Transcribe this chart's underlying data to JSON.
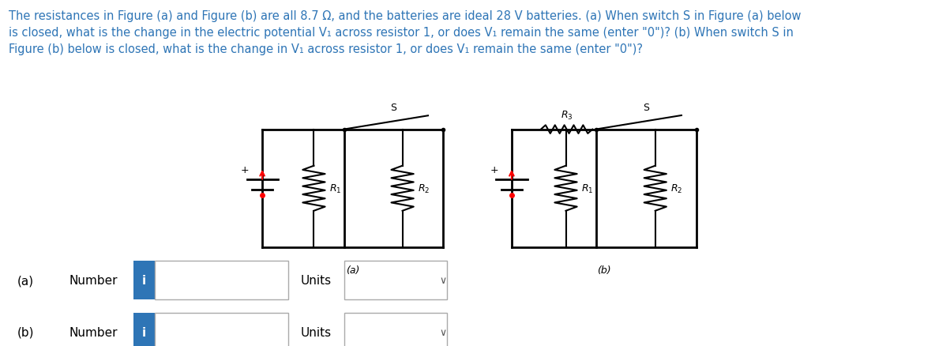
{
  "title_text": "The resistances in Figure (a) and Figure (b) are all 8.7 Ω, and the batteries are ideal 28 V batteries. (a) When switch S in Figure (a) below\nis closed, what is the change in the electric potential V₁ across resistor 1, or does V₁ remain the same (enter \"0\")? (b) When switch S in\nFigure (b) below is closed, what is the change in V₁ across resistor 1, or does V₁ remain the same (enter \"0\")?",
  "title_color": "#2e75b6",
  "background_color": "#ffffff",
  "label_a": "(a)",
  "label_b": "(b)",
  "row_a_label": "(a)",
  "row_b_label": "(b)",
  "number_label": "Number",
  "units_label": "Units",
  "i_button_color": "#2e75b6",
  "i_button_text": "i",
  "input_box_color": "#ffffff",
  "input_box_border": "#aaaaaa",
  "units_box_color": "#ffffff",
  "units_box_border": "#aaaaaa"
}
